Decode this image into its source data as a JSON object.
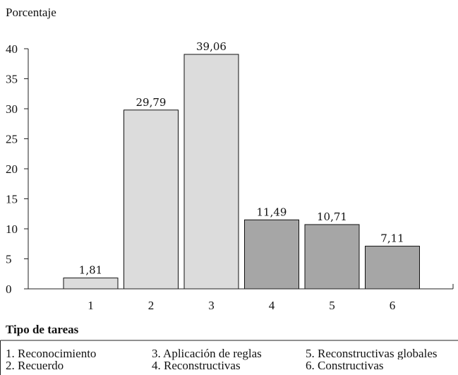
{
  "chart_data": {
    "type": "bar",
    "ylabel": "Porcentaje",
    "xlabel": "Tipo de tareas",
    "categories": [
      "1",
      "2",
      "3",
      "4",
      "5",
      "6"
    ],
    "values": [
      1.81,
      29.79,
      39.06,
      11.49,
      10.71,
      7.11
    ],
    "value_labels": [
      "1,81",
      "29,79",
      "39,06",
      "11,49",
      "10,71",
      "7,11"
    ],
    "bar_colors": [
      "#dcdcdc",
      "#dcdcdc",
      "#dcdcdc",
      "#a6a6a6",
      "#a6a6a6",
      "#a6a6a6"
    ],
    "ylim": [
      0,
      40
    ],
    "yticks": [
      0,
      5,
      10,
      15,
      20,
      25,
      30,
      35,
      40
    ],
    "grid": false,
    "legend": [
      "1. Reconocimiento",
      "2. Recuerdo",
      "3. Aplicación de reglas",
      "4. Reconstructivas",
      "5. Reconstructivas globales",
      "6. Constructivas"
    ]
  }
}
